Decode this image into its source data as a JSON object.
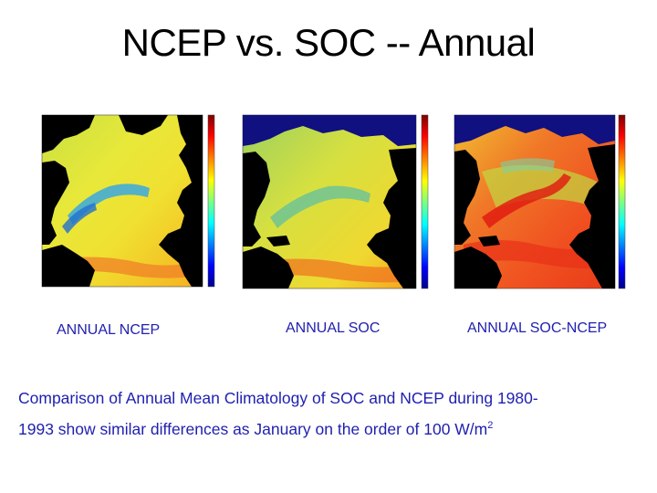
{
  "slide": {
    "title": "NCEP vs. SOC -- Annual"
  },
  "panels": [
    {
      "id": "ncep",
      "label": "ANNUAL NCEP",
      "colormap": "jet"
    },
    {
      "id": "soc",
      "label": "ANNUAL SOC",
      "colormap": "jet"
    },
    {
      "id": "soc-ncep",
      "label": "ANNUAL SOC-NCEP",
      "colormap": "jet"
    }
  ],
  "caption": {
    "line1": "Comparison of Annual Mean Climatology of SOC and NCEP during 1980-",
    "line2": "1993 show similar differences as January on the order of 100  W/m",
    "superscript": "2"
  },
  "colors": {
    "land": "#000000",
    "text_blue": "#1f1fb0",
    "colorbar": [
      "#00008f",
      "#0000ff",
      "#00ffff",
      "#7fff7f",
      "#ffff00",
      "#ff7f00",
      "#ff0000",
      "#7f0000"
    ]
  }
}
